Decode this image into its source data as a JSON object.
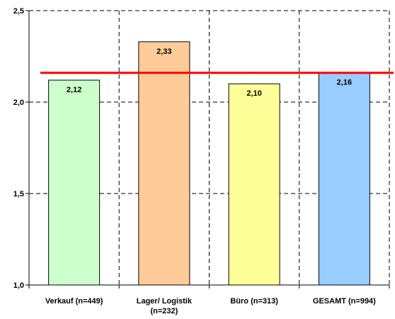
{
  "chart_data": {
    "type": "bar",
    "categories": [
      [
        "Verkauf (n=449)"
      ],
      [
        "Lager/ Logistik",
        "(n=232)"
      ],
      [
        "Büro (n=313)"
      ],
      [
        "GESAMT (n=994)"
      ]
    ],
    "values": [
      2.12,
      2.33,
      2.1,
      2.16
    ],
    "value_labels": [
      "2,12",
      "2,33",
      "2,10",
      "2,16"
    ],
    "bar_colors": [
      "#ccffcc",
      "#ffcc99",
      "#ffff99",
      "#99ccff"
    ],
    "reference_line": {
      "value": 2.16,
      "color": "#ff0000"
    },
    "ylim": [
      1.0,
      2.5
    ],
    "yticks": [
      1.0,
      1.5,
      2.0,
      2.5
    ],
    "ytick_labels": [
      "1,0",
      "1,5",
      "2,0",
      "2,5"
    ],
    "grid": true,
    "title": "",
    "xlabel": "",
    "ylabel": ""
  }
}
